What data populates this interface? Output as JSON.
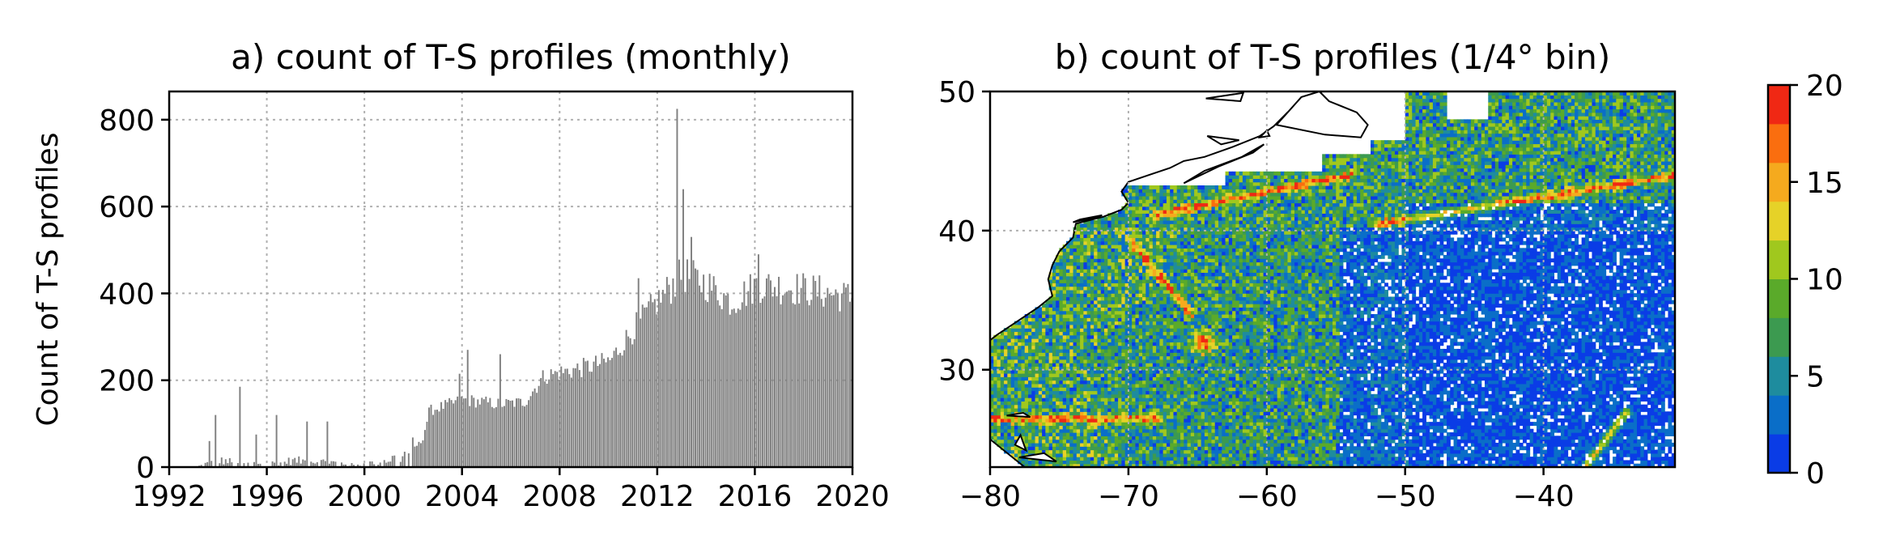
{
  "chart_data": [
    {
      "type": "bar",
      "title": "a) count of T-S profiles (monthly)",
      "xlabel": "",
      "ylabel": "Count of T-S profiles",
      "xlim": [
        1992,
        2020
      ],
      "ylim": [
        0,
        865
      ],
      "x_ticks": [
        "1992",
        "1996",
        "2000",
        "2004",
        "2008",
        "2012",
        "2016",
        "2020"
      ],
      "y_ticks": [
        "0",
        "200",
        "400",
        "600",
        "800"
      ],
      "grid": true,
      "bar_color": "#808080",
      "monthly_level_keypoints": [
        {
          "year": 1993.0,
          "count": 0
        },
        {
          "year": 1993.4,
          "count": 8
        },
        {
          "year": 1994.0,
          "count": 15
        },
        {
          "year": 1995.0,
          "count": 10
        },
        {
          "year": 1996.0,
          "count": 8
        },
        {
          "year": 1997.0,
          "count": 15
        },
        {
          "year": 1998.5,
          "count": 12
        },
        {
          "year": 1999.5,
          "count": 5
        },
        {
          "year": 2000.0,
          "count": 8
        },
        {
          "year": 2000.8,
          "count": 15
        },
        {
          "year": 2001.6,
          "count": 28
        },
        {
          "year": 2002.3,
          "count": 60
        },
        {
          "year": 2002.6,
          "count": 130
        },
        {
          "year": 2004.0,
          "count": 155
        },
        {
          "year": 2005.5,
          "count": 145
        },
        {
          "year": 2006.5,
          "count": 150
        },
        {
          "year": 2007.3,
          "count": 210
        },
        {
          "year": 2009.0,
          "count": 230
        },
        {
          "year": 2010.0,
          "count": 245
        },
        {
          "year": 2011.0,
          "count": 320
        },
        {
          "year": 2012.0,
          "count": 385
        },
        {
          "year": 2013.0,
          "count": 445
        },
        {
          "year": 2014.0,
          "count": 420
        },
        {
          "year": 2015.0,
          "count": 380
        },
        {
          "year": 2016.0,
          "count": 420
        },
        {
          "year": 2018.0,
          "count": 410
        },
        {
          "year": 2020.0,
          "count": 390
        }
      ],
      "notable_months": [
        {
          "year": 1993.6,
          "count": 60
        },
        {
          "year": 1993.8,
          "count": 120
        },
        {
          "year": 1994.8,
          "count": 185
        },
        {
          "year": 1995.5,
          "count": 75
        },
        {
          "year": 1996.3,
          "count": 120
        },
        {
          "year": 1997.6,
          "count": 105
        },
        {
          "year": 1998.4,
          "count": 105
        },
        {
          "year": 2003.8,
          "count": 215
        },
        {
          "year": 2004.2,
          "count": 270
        },
        {
          "year": 2005.5,
          "count": 260
        },
        {
          "year": 2011.2,
          "count": 435
        },
        {
          "year": 2012.4,
          "count": 420
        },
        {
          "year": 2012.75,
          "count": 825
        },
        {
          "year": 2013.0,
          "count": 640
        },
        {
          "year": 2013.3,
          "count": 530
        },
        {
          "year": 2016.1,
          "count": 490
        }
      ]
    },
    {
      "type": "heatmap",
      "title": "b) count of T-S profiles (1/4° bin)",
      "xlabel": "",
      "ylabel": "",
      "xlim": [
        -80,
        -30.5
      ],
      "ylim": [
        23,
        50
      ],
      "x_ticks": [
        "−80",
        "−70",
        "−60",
        "−50",
        "−40"
      ],
      "y_ticks": [
        "50",
        "40",
        "30"
      ],
      "grid": true,
      "bin_size_degrees": 0.25,
      "colorbar": {
        "range": [
          0,
          20
        ],
        "ticks": [
          "0",
          "5",
          "10",
          "15",
          "20"
        ],
        "colors": [
          "#0a3ce6",
          "#0a6ec8",
          "#1e8c9e",
          "#3c9a50",
          "#5aaa2a",
          "#a0c81e",
          "#e6d228",
          "#f5aa1e",
          "#fa6e0f",
          "#f02814"
        ]
      },
      "land_color": "#ffffff",
      "coastline_color": "#000000",
      "high_count_tracks": [
        {
          "name": "ship line NE",
          "from": [
            -70,
            39.5
          ],
          "to": [
            -65.5,
            34
          ]
        },
        {
          "name": "Gulf Stream hotspot",
          "at": [
            -64.5,
            32
          ]
        },
        {
          "name": "Florida Straits",
          "from": [
            -80,
            26.5
          ],
          "to": [
            -68,
            26.5
          ]
        },
        {
          "name": "ship line N",
          "from": [
            -52,
            40.5
          ],
          "to": [
            -30.5,
            44
          ]
        },
        {
          "name": "ship line shelf",
          "from": [
            -68,
            41.2
          ],
          "to": [
            -54,
            44
          ]
        },
        {
          "name": "ship line SE",
          "from": [
            -37,
            23
          ],
          "to": [
            -34,
            27
          ]
        }
      ]
    }
  ]
}
